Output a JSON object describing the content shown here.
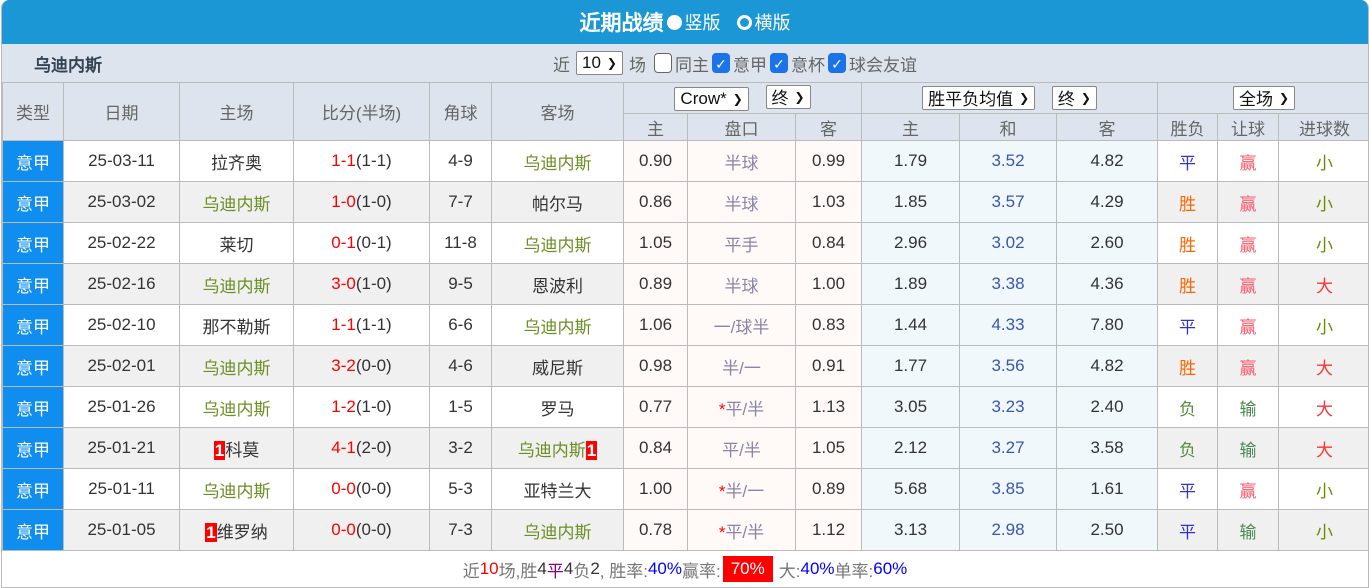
{
  "title": "近期战绩",
  "view_options": [
    {
      "label": "竖版",
      "selected": true
    },
    {
      "label": "横版",
      "selected": false
    }
  ],
  "team": "乌迪内斯",
  "filter": {
    "prefix": "近",
    "count": "10",
    "suffix": "场",
    "checkboxes": [
      {
        "label": "同主",
        "checked": false
      },
      {
        "label": "意甲",
        "checked": true
      },
      {
        "label": "意杯",
        "checked": true
      },
      {
        "label": "球会友谊",
        "checked": true
      }
    ]
  },
  "headers": {
    "type": "类型",
    "date": "日期",
    "home": "主场",
    "score": "比分(半场)",
    "corner": "角球",
    "away": "客场",
    "ah_company": "Crow*",
    "ah_stage": "终",
    "eu_type": "胜平负均值",
    "eu_stage": "终",
    "period": "全场",
    "ah_home": "主",
    "ah_line": "盘口",
    "ah_away": "客",
    "eu_home": "主",
    "eu_draw": "和",
    "eu_away": "客",
    "res": "胜负",
    "hres": "让球",
    "goals": "进球数"
  },
  "rows": [
    {
      "type": "意甲",
      "date": "25-03-11",
      "home": "拉齐奥",
      "home_badge": "",
      "home_is_team": false,
      "score": "1-1",
      "half": "(1-1)",
      "corner": "4-9",
      "away": "乌迪内斯",
      "away_badge": "",
      "away_is_team": true,
      "ah_home": "0.90",
      "ah_line": "半球",
      "ah_star": "",
      "ah_away": "0.99",
      "eu_home": "1.79",
      "eu_draw": "3.52",
      "eu_away": "4.82",
      "res": "平",
      "hres": "赢",
      "goals": "小"
    },
    {
      "type": "意甲",
      "date": "25-03-02",
      "home": "乌迪内斯",
      "home_badge": "",
      "home_is_team": true,
      "score": "1-0",
      "half": "(1-0)",
      "corner": "7-7",
      "away": "帕尔马",
      "away_badge": "",
      "away_is_team": false,
      "ah_home": "0.86",
      "ah_line": "半球",
      "ah_star": "",
      "ah_away": "1.03",
      "eu_home": "1.85",
      "eu_draw": "3.57",
      "eu_away": "4.29",
      "res": "胜",
      "hres": "赢",
      "goals": "小"
    },
    {
      "type": "意甲",
      "date": "25-02-22",
      "home": "莱切",
      "home_badge": "",
      "home_is_team": false,
      "score": "0-1",
      "half": "(0-1)",
      "corner": "11-8",
      "away": "乌迪内斯",
      "away_badge": "",
      "away_is_team": true,
      "ah_home": "1.05",
      "ah_line": "平手",
      "ah_star": "",
      "ah_away": "0.84",
      "eu_home": "2.96",
      "eu_draw": "3.02",
      "eu_away": "2.60",
      "res": "胜",
      "hres": "赢",
      "goals": "小"
    },
    {
      "type": "意甲",
      "date": "25-02-16",
      "home": "乌迪内斯",
      "home_badge": "",
      "home_is_team": true,
      "score": "3-0",
      "half": "(1-0)",
      "corner": "9-5",
      "away": "恩波利",
      "away_badge": "",
      "away_is_team": false,
      "ah_home": "0.89",
      "ah_line": "半球",
      "ah_star": "",
      "ah_away": "1.00",
      "eu_home": "1.89",
      "eu_draw": "3.38",
      "eu_away": "4.36",
      "res": "胜",
      "hres": "赢",
      "goals": "大"
    },
    {
      "type": "意甲",
      "date": "25-02-10",
      "home": "那不勒斯",
      "home_badge": "",
      "home_is_team": false,
      "score": "1-1",
      "half": "(1-1)",
      "corner": "6-6",
      "away": "乌迪内斯",
      "away_badge": "",
      "away_is_team": true,
      "ah_home": "1.06",
      "ah_line": "一/球半",
      "ah_star": "",
      "ah_away": "0.83",
      "eu_home": "1.44",
      "eu_draw": "4.33",
      "eu_away": "7.80",
      "res": "平",
      "hres": "赢",
      "goals": "小"
    },
    {
      "type": "意甲",
      "date": "25-02-01",
      "home": "乌迪内斯",
      "home_badge": "",
      "home_is_team": true,
      "score": "3-2",
      "half": "(0-0)",
      "corner": "4-6",
      "away": "威尼斯",
      "away_badge": "",
      "away_is_team": false,
      "ah_home": "0.98",
      "ah_line": "半/一",
      "ah_star": "",
      "ah_away": "0.91",
      "eu_home": "1.77",
      "eu_draw": "3.56",
      "eu_away": "4.82",
      "res": "胜",
      "hres": "赢",
      "goals": "大"
    },
    {
      "type": "意甲",
      "date": "25-01-26",
      "home": "乌迪内斯",
      "home_badge": "",
      "home_is_team": true,
      "score": "1-2",
      "half": "(1-0)",
      "corner": "1-5",
      "away": "罗马",
      "away_badge": "",
      "away_is_team": false,
      "ah_home": "0.77",
      "ah_line": "平/半",
      "ah_star": "*",
      "ah_away": "1.13",
      "eu_home": "3.05",
      "eu_draw": "3.23",
      "eu_away": "2.40",
      "res": "负",
      "hres": "输",
      "goals": "大"
    },
    {
      "type": "意甲",
      "date": "25-01-21",
      "home": "科莫",
      "home_badge": "1",
      "home_is_team": false,
      "score": "4-1",
      "half": "(2-0)",
      "corner": "3-2",
      "away": "乌迪内斯",
      "away_badge": "1",
      "away_is_team": true,
      "ah_home": "0.84",
      "ah_line": "平/半",
      "ah_star": "",
      "ah_away": "1.05",
      "eu_home": "2.12",
      "eu_draw": "3.27",
      "eu_away": "3.58",
      "res": "负",
      "hres": "输",
      "goals": "大"
    },
    {
      "type": "意甲",
      "date": "25-01-11",
      "home": "乌迪内斯",
      "home_badge": "",
      "home_is_team": true,
      "score": "0-0",
      "half": "(0-0)",
      "corner": "5-3",
      "away": "亚特兰大",
      "away_badge": "",
      "away_is_team": false,
      "ah_home": "1.00",
      "ah_line": "半/一",
      "ah_star": "*",
      "ah_away": "0.89",
      "eu_home": "5.68",
      "eu_draw": "3.85",
      "eu_away": "1.61",
      "res": "平",
      "hres": "赢",
      "goals": "小"
    },
    {
      "type": "意甲",
      "date": "25-01-05",
      "home": "维罗纳",
      "home_badge": "1",
      "home_is_team": false,
      "score": "0-0",
      "half": "(0-0)",
      "corner": "7-3",
      "away": "乌迪内斯",
      "away_badge": "",
      "away_is_team": true,
      "ah_home": "0.78",
      "ah_line": "平/半",
      "ah_star": "*",
      "ah_away": "1.12",
      "eu_home": "3.13",
      "eu_draw": "2.98",
      "eu_away": "2.50",
      "res": "平",
      "hres": "输",
      "goals": "小"
    }
  ],
  "summary": {
    "p1": "近",
    "n": "10",
    "p2": "场,胜",
    "w": "4",
    "p3": "平",
    "d": "4",
    "p4": "负",
    "l": "2",
    "p5": ", 胜率:",
    "win_rate": "40%",
    "p6": " 赢率:",
    "ah_rate": "70%",
    "p7": "大:",
    "big_rate": "40%",
    "p8": " 单率:",
    "odd_rate": "60%"
  },
  "colors": {
    "title_bar": "#1b97d6",
    "type_cell": "#0f8ef0",
    "badge": "#ff0000"
  }
}
